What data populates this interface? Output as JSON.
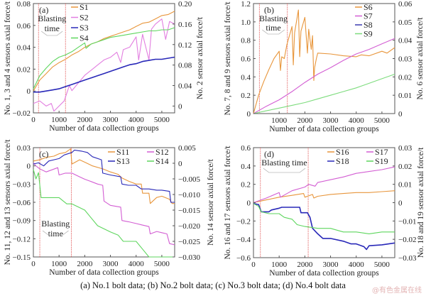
{
  "caption": "(a) No.1 bolt data; (b) No.2 bolt data; (c) No.3 bolt data; (d) No.4 bolt data",
  "watermark": "@有色金属在线",
  "chart_data": [
    {
      "id": "a",
      "type": "line",
      "panel_label": "(a)",
      "title": "No.1 bolt data",
      "xlabel": "Number of data collection groups",
      "ylabel": "No. 1, 3 and 4 sensors axial force/t",
      "ylabel_right": "No. 2 sensor axial force/t",
      "xlim": [
        0,
        5500
      ],
      "ylim": [
        -0.02,
        0.08
      ],
      "ylim_right": [
        -0.0133,
        0.2
      ],
      "xticks": [
        0,
        1000,
        2000,
        3000,
        4000,
        5000
      ],
      "yticks": [
        -0.02,
        0,
        0.02,
        0.04,
        0.06,
        0.08
      ],
      "ytick_labels": [
        "−0.02",
        "0",
        "0.02",
        "0.04",
        "0.06",
        "0.08"
      ],
      "yticks_right": [
        0,
        0.04,
        0.08,
        0.12,
        0.16,
        0.2
      ],
      "ytick_labels_right": [
        "0",
        "0.04",
        "0.08",
        "0.12",
        "0.16",
        "0.20"
      ],
      "blasting_lines": [
        200,
        1250
      ],
      "blasting_label": [
        "Blasting",
        "time"
      ],
      "legend": {
        "position": "top-left-center",
        "columns": 1
      },
      "series": [
        {
          "name": "S1",
          "axis": "left",
          "color": "#e8963c",
          "x": [
            0,
            250,
            500,
            750,
            1000,
            1250,
            1500,
            1750,
            2000,
            2250,
            2500,
            2750,
            3000,
            3250,
            3500,
            3750,
            4000,
            4250,
            4500,
            4750,
            5000,
            5250,
            5500
          ],
          "y": [
            0.0,
            0.01,
            0.016,
            0.022,
            0.026,
            0.029,
            0.033,
            0.036,
            0.04,
            0.043,
            0.045,
            0.048,
            0.05,
            0.052,
            0.054,
            0.056,
            0.059,
            0.062,
            0.063,
            0.066,
            0.069,
            0.07,
            0.073
          ]
        },
        {
          "name": "S2",
          "axis": "right",
          "color": "#e27ee0",
          "x": [
            0,
            250,
            500,
            700,
            800,
            1000,
            1200,
            1400,
            1500,
            1750,
            2000,
            2250,
            2500,
            2750,
            3000,
            3250,
            3400,
            3500,
            3750,
            4000,
            4100,
            4250,
            4500,
            4600,
            4750,
            5000,
            5150,
            5300,
            5500
          ],
          "y": [
            0.005,
            0.01,
            0.0,
            0.005,
            -0.01,
            0.0,
            0.01,
            0.04,
            0.03,
            0.045,
            0.06,
            0.07,
            0.08,
            0.09,
            0.095,
            0.105,
            0.085,
            0.11,
            0.115,
            0.135,
            0.09,
            0.14,
            0.09,
            0.15,
            0.16,
            0.17,
            0.13,
            0.165,
            0.16
          ]
        },
        {
          "name": "S3",
          "axis": "left",
          "color": "#2828b8",
          "x": [
            0,
            250,
            500,
            750,
            1000,
            1250,
            1500,
            1750,
            2000,
            2250,
            2500,
            2750,
            3000,
            3250,
            3500,
            3750,
            4000,
            4250,
            4500,
            4750,
            5000,
            5250,
            5500
          ],
          "y": [
            -0.001,
            -0.001,
            0.0,
            0.001,
            0.002,
            0.004,
            0.006,
            0.008,
            0.01,
            0.012,
            0.014,
            0.016,
            0.018,
            0.02,
            0.022,
            0.024,
            0.025,
            0.027,
            0.028,
            0.029,
            0.029,
            0.03,
            0.031
          ]
        },
        {
          "name": "S4",
          "axis": "left",
          "color": "#5ed65e",
          "x": [
            0,
            250,
            500,
            750,
            1000,
            1250,
            1500,
            1750,
            2000,
            2050,
            2250,
            2500,
            2750,
            3000,
            3250,
            3500,
            3750,
            4000,
            4250,
            4500,
            4750,
            5000,
            5250,
            5500
          ],
          "y": [
            0.002,
            0.014,
            0.021,
            0.027,
            0.031,
            0.033,
            0.036,
            0.04,
            0.044,
            0.039,
            0.043,
            0.045,
            0.047,
            0.049,
            0.05,
            0.051,
            0.052,
            0.053,
            0.054,
            0.055,
            0.055,
            0.056,
            0.056,
            0.058
          ]
        }
      ]
    },
    {
      "id": "b",
      "type": "line",
      "panel_label": "(b)",
      "title": "No.2 bolt data",
      "xlabel": "Number of data collection groups",
      "ylabel": "No. 7, 8 and 9 sensors axial force/t",
      "ylabel_right": "No. 6 sensor axial force/t",
      "xlim": [
        0,
        5500
      ],
      "ylim": [
        0,
        1.2
      ],
      "ylim_right": [
        0,
        0.06
      ],
      "xticks": [
        1000,
        2000,
        3000,
        4000,
        5000
      ],
      "yticks": [
        0,
        0.2,
        0.4,
        0.6,
        0.8,
        1.0,
        1.2
      ],
      "ytick_labels": [
        "0",
        "0.2",
        "0.4",
        "0.6",
        "0.8",
        "1.0",
        "1.2"
      ],
      "yticks_right": [
        0,
        0.01,
        0.02,
        0.03,
        0.04,
        0.05,
        0.06
      ],
      "ytick_labels_right": [
        "0",
        "0.01",
        "0.02",
        "0.03",
        "0.04",
        "0.05",
        "0.06"
      ],
      "blasting_lines": [
        230,
        1320
      ],
      "blasting_label": [
        "Blasting",
        "time"
      ],
      "legend": {
        "position": "top-right",
        "columns": 1
      },
      "series": [
        {
          "name": "S6",
          "axis": "left",
          "color": "#e8963c",
          "x": [
            0,
            200,
            400,
            600,
            800,
            1000,
            1050,
            1100,
            1200,
            1300,
            1500,
            1550,
            1600,
            1750,
            1800,
            1850,
            2000,
            2100,
            2150,
            2250,
            2300,
            2350,
            2380,
            2450,
            2500,
            3000,
            3500,
            4000,
            4200,
            4500,
            5000,
            5200,
            5500
          ],
          "y": [
            0.0,
            0.2,
            0.35,
            0.48,
            0.6,
            0.68,
            0.47,
            0.62,
            0.6,
            0.75,
            0.95,
            0.53,
            0.88,
            1.13,
            0.62,
            0.9,
            1.05,
            0.66,
            0.92,
            0.7,
            0.85,
            0.36,
            0.5,
            0.6,
            0.66,
            0.65,
            0.63,
            0.62,
            0.64,
            0.63,
            0.68,
            0.66,
            0.72
          ]
        },
        {
          "name": "S7",
          "axis": "left",
          "color": "#d35ed3",
          "x": [
            0,
            500,
            1000,
            1500,
            2000,
            2500,
            3000,
            3500,
            4000,
            4500,
            5000,
            5500
          ],
          "y": [
            0.0,
            0.08,
            0.15,
            0.24,
            0.34,
            0.43,
            0.5,
            0.58,
            0.65,
            0.7,
            0.76,
            0.82
          ]
        },
        {
          "name": "S8",
          "axis": "left",
          "color": "#3a3ab0",
          "x": [],
          "y": []
        },
        {
          "name": "S9",
          "axis": "left",
          "color": "#7ddc7d",
          "x": [
            0,
            500,
            1000,
            1500,
            2000,
            2500,
            3000,
            3500,
            4000,
            4500,
            5000,
            5500
          ],
          "y": [
            0.0,
            0.03,
            0.06,
            0.09,
            0.12,
            0.16,
            0.2,
            0.24,
            0.28,
            0.33,
            0.38,
            0.43
          ]
        }
      ]
    },
    {
      "id": "c",
      "type": "line",
      "panel_label": "(c)",
      "title": "No.3 bolt data",
      "xlabel": "Number of data collection groups",
      "ylabel": "No. 11, 12 and 13 sensors axial force/t",
      "ylabel_right": "No. 14 sensor axial force/t",
      "xlim": [
        0,
        5500
      ],
      "ylim": [
        -0.15,
        0.03
      ],
      "ylim_right": [
        -0.03,
        0.005
      ],
      "xticks": [
        0,
        1000,
        2000,
        3000,
        4000,
        5000
      ],
      "yticks": [
        -0.15,
        -0.12,
        -0.09,
        -0.06,
        -0.03,
        0,
        0.03
      ],
      "ytick_labels": [
        "−0.15",
        "−0.12",
        "−0.09",
        "−0.06",
        "−0.03",
        "0",
        "0.03"
      ],
      "yticks_right": [
        -0.03,
        -0.025,
        -0.02,
        -0.015,
        -0.01,
        -0.005,
        0,
        0.005
      ],
      "ytick_labels_right": [
        "−0.030",
        "−0.025",
        "−0.020",
        "−0.015",
        "−0.010",
        "−0.005",
        "0",
        "0.005"
      ],
      "blasting_lines": [
        250,
        1480
      ],
      "blasting_label": [
        "Blasting",
        "time"
      ],
      "legend": {
        "position": "top-right",
        "columns": 2
      },
      "series": [
        {
          "name": "S11",
          "axis": "left",
          "color": "#e8963c",
          "x": [
            0,
            250,
            500,
            800,
            1000,
            1250,
            1450,
            1500,
            1800,
            2000,
            2300,
            2700,
            3000,
            3300,
            3450,
            3700,
            4000,
            4200,
            4250,
            4500,
            4550,
            4800,
            5000,
            5300,
            5400,
            5500
          ],
          "y": [
            0.008,
            0.01,
            0.014,
            0.016,
            0.02,
            0.022,
            0.028,
            0.003,
            0.01,
            0.006,
            0.0,
            -0.005,
            -0.01,
            -0.014,
            -0.02,
            -0.025,
            -0.03,
            -0.03,
            -0.045,
            -0.045,
            -0.062,
            -0.052,
            -0.05,
            -0.055,
            -0.062,
            -0.062
          ]
        },
        {
          "name": "S12",
          "axis": "left",
          "color": "#d35ed3",
          "x": [
            0,
            100,
            250,
            500,
            950,
            1000,
            1250,
            1500,
            1800,
            2000,
            2200,
            2500,
            2700,
            2750,
            3000,
            3400,
            3450,
            3700,
            4000,
            4200,
            4500,
            4550,
            4800,
            5000,
            5200,
            5300,
            5500
          ],
          "y": [
            0.005,
            0.0,
            -0.005,
            -0.01,
            -0.003,
            -0.015,
            -0.012,
            -0.012,
            -0.018,
            -0.022,
            -0.025,
            -0.03,
            -0.032,
            -0.058,
            -0.065,
            -0.068,
            -0.09,
            -0.092,
            -0.095,
            -0.097,
            -0.1,
            -0.112,
            -0.108,
            -0.11,
            -0.112,
            -0.128,
            -0.13
          ]
        },
        {
          "name": "S13",
          "axis": "left",
          "color": "#2828b8",
          "x": [
            0,
            200,
            400,
            600,
            800,
            1000,
            1200,
            1500,
            1600,
            1900,
            2100,
            2300,
            2650,
            2700,
            3000,
            3400,
            3450,
            3700,
            4000,
            4200,
            4500,
            4800,
            5000,
            5300,
            5350,
            5500
          ],
          "y": [
            0.003,
            0.005,
            0.0,
            0.008,
            0.01,
            0.012,
            0.018,
            0.022,
            0.026,
            0.024,
            0.022,
            0.015,
            0.01,
            -0.012,
            -0.015,
            -0.018,
            -0.03,
            -0.032,
            -0.032,
            -0.038,
            -0.038,
            -0.04,
            -0.04,
            -0.042,
            -0.06,
            -0.06
          ]
        },
        {
          "name": "S14",
          "axis": "right",
          "color": "#5ed65e",
          "x": [
            0,
            100,
            200,
            300,
            500,
            1000,
            1300,
            1500,
            2000,
            2200,
            2500,
            3000,
            3300,
            3500,
            4000,
            4300,
            4500,
            5000,
            5500
          ],
          "y": [
            -0.002,
            -0.005,
            -0.003,
            -0.011,
            -0.011,
            -0.011,
            -0.013,
            -0.013,
            -0.015,
            -0.017,
            -0.02,
            -0.022,
            -0.023,
            -0.025,
            -0.025,
            -0.028,
            -0.03,
            -0.03,
            -0.03
          ]
        }
      ]
    },
    {
      "id": "d",
      "type": "line",
      "panel_label": "(d)",
      "title": "No.4 bolt data",
      "xlabel": "Number of data collection groups",
      "ylabel": "No. 16 and 17 sensors axial force/t",
      "ylabel_right": "No. 18 and 19 sensor axial force/t",
      "xlim": [
        0,
        5500
      ],
      "ylim": [
        -0.6,
        0.6
      ],
      "ylim_right": [
        -0.03,
        0.03
      ],
      "xticks": [
        0,
        1000,
        2000,
        3000,
        4000,
        5000
      ],
      "yticks": [
        -0.6,
        -0.4,
        -0.2,
        0,
        0.2,
        0.4,
        0.6
      ],
      "ytick_labels": [
        "−0.6",
        "−0.4",
        "−0.2",
        "0",
        "0.2",
        "0.4",
        "0.6"
      ],
      "yticks_right": [
        -0.03,
        -0.02,
        -0.01,
        0,
        0.01,
        0.02,
        0.03
      ],
      "ytick_labels_right": [
        "−0.03",
        "−0.02",
        "−0.01",
        "0",
        "0.01",
        "0.02",
        "0.03"
      ],
      "blasting_lines": [
        270,
        2130
      ],
      "blasting_label": [
        "Blasting time"
      ],
      "legend": {
        "position": "top-right",
        "columns": 2
      },
      "series": [
        {
          "name": "S16",
          "axis": "left",
          "color": "#e8963c",
          "x": [
            0,
            500,
            1000,
            1500,
            1950,
            2000,
            2300,
            2350,
            2500,
            3000,
            3500,
            4000,
            4500,
            5000,
            5500
          ],
          "y": [
            0.0,
            0.03,
            0.06,
            0.08,
            0.1,
            0.06,
            0.09,
            0.05,
            0.07,
            0.09,
            0.1,
            0.11,
            0.11,
            0.12,
            0.13
          ]
        },
        {
          "name": "S17",
          "axis": "left",
          "color": "#d35ed3",
          "x": [
            0,
            500,
            1000,
            1050,
            1500,
            2000,
            2150,
            2400,
            2500,
            3000,
            3500,
            4000,
            4500,
            5000,
            5500
          ],
          "y": [
            0.0,
            0.05,
            0.11,
            0.06,
            0.13,
            0.17,
            0.2,
            0.18,
            0.22,
            0.25,
            0.28,
            0.32,
            0.34,
            0.36,
            0.39
          ]
        },
        {
          "name": "S18",
          "axis": "right",
          "color": "#2828b8",
          "x": [
            0,
            200,
            300,
            600,
            700,
            1000,
            1100,
            1800,
            1850,
            2100,
            2200,
            2300,
            2500,
            2700,
            3000,
            3500,
            3800,
            4000,
            4300,
            4400,
            4500,
            5000,
            5500
          ],
          "y": [
            -0.0005,
            -0.001,
            -0.005,
            -0.005,
            -0.004,
            -0.003,
            -0.0025,
            -0.0025,
            -0.0055,
            -0.0055,
            -0.008,
            -0.014,
            -0.017,
            -0.0195,
            -0.0195,
            -0.021,
            -0.0225,
            -0.0225,
            -0.024,
            -0.0255,
            -0.0235,
            -0.023,
            -0.022
          ]
        },
        {
          "name": "S19",
          "axis": "right",
          "color": "#5ed65e",
          "x": [
            0,
            200,
            300,
            600,
            1000,
            1200,
            1500,
            1700,
            2000,
            2500,
            3000,
            3500,
            4000,
            4500,
            5000,
            5500
          ],
          "y": [
            -0.0005,
            -0.002,
            -0.005,
            -0.006,
            -0.006,
            -0.008,
            -0.009,
            -0.012,
            -0.013,
            -0.014,
            -0.014,
            -0.016,
            -0.016,
            -0.017,
            -0.016,
            -0.016
          ]
        }
      ]
    }
  ]
}
